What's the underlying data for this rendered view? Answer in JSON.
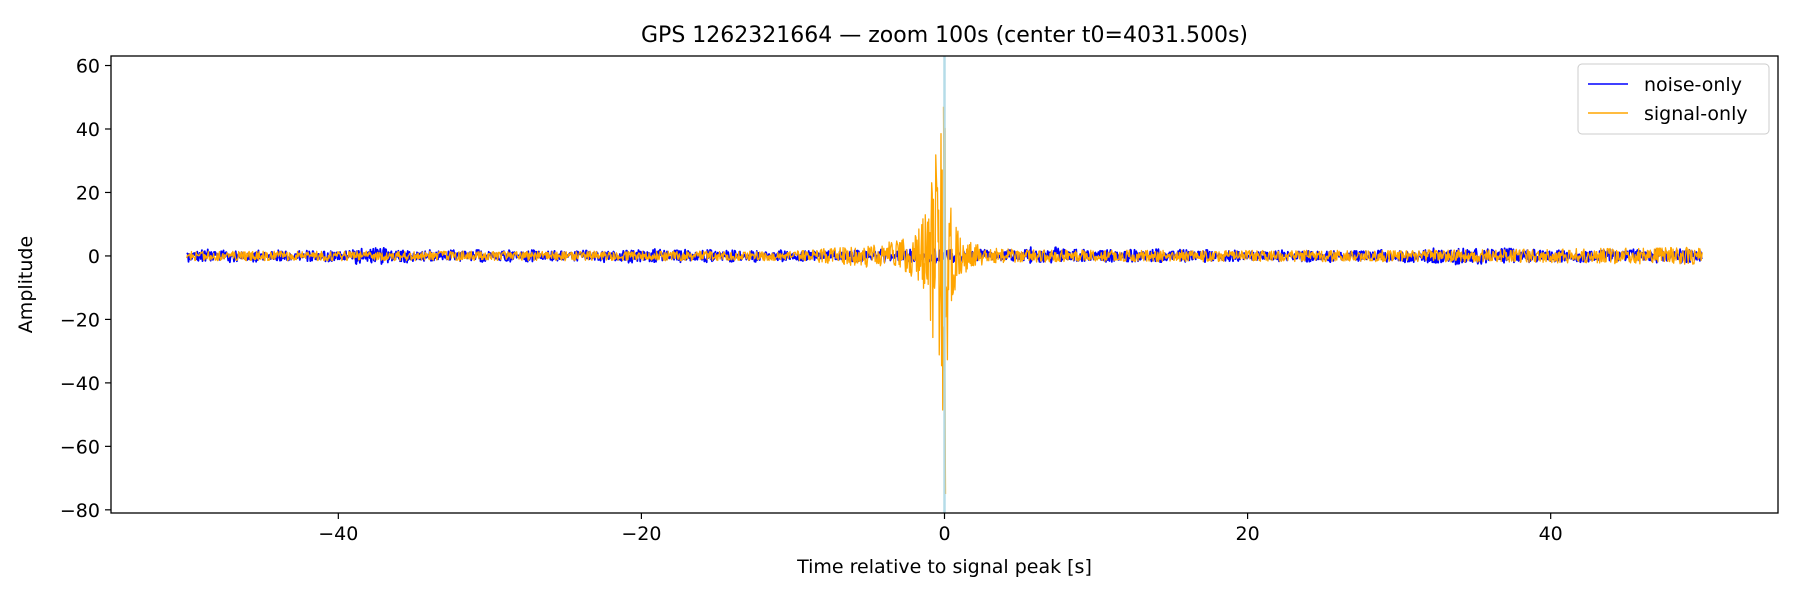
{
  "chart_data": {
    "type": "line",
    "title": "GPS 1262321664 — zoom 100s (center t0=4031.500s)",
    "xlabel": "Time relative to signal peak [s]",
    "ylabel": "Amplitude",
    "xlim": [
      -55,
      55
    ],
    "ylim": [
      -81,
      63
    ],
    "x_ticks": [
      -40,
      -20,
      0,
      20,
      40
    ],
    "x_tick_labels": [
      "−40",
      "−20",
      "0",
      "20",
      "40"
    ],
    "y_ticks": [
      60,
      40,
      20,
      0,
      -20,
      -40,
      -60,
      -80
    ],
    "y_tick_labels": [
      "60",
      "40",
      "20",
      "0",
      "−20",
      "−40",
      "−60",
      "−80"
    ],
    "grid": false,
    "legend_position": "top-right",
    "marker_line": {
      "x": 0,
      "color": "#add8e6"
    },
    "series": [
      {
        "name": "noise-only",
        "color": "#0000ff",
        "x_range": [
          -50,
          50
        ],
        "envelope": {
          "x": [
            -50,
            -45,
            -40,
            -38,
            -35,
            -30,
            -25,
            -20,
            -15,
            -10,
            -5,
            -2,
            0,
            2,
            5,
            6,
            10,
            15,
            20,
            25,
            30,
            35,
            40,
            45,
            50
          ],
          "half_amplitude": [
            2.4,
            1.8,
            2.0,
            3.0,
            2.0,
            2.0,
            1.8,
            2.4,
            2.0,
            1.8,
            2.0,
            2.2,
            2.4,
            2.0,
            2.0,
            3.2,
            2.0,
            2.2,
            1.8,
            2.0,
            2.0,
            3.0,
            2.0,
            2.2,
            2.4
          ]
        }
      },
      {
        "name": "signal-only",
        "color": "#ffa500",
        "x_range": [
          -50,
          50
        ],
        "envelope": {
          "x": [
            -50,
            -30,
            -10,
            -4,
            -2,
            -1,
            -0.5,
            -0.2,
            0,
            0.3,
            1,
            2,
            3,
            5,
            10,
            20,
            30,
            40,
            45,
            50
          ],
          "half_amplitude": [
            1.5,
            1.5,
            1.5,
            4,
            7,
            18,
            35,
            40,
            62,
            18,
            6,
            4,
            2.5,
            2,
            1.8,
            1.8,
            1.8,
            2.2,
            2.5,
            2.8
          ]
        },
        "peak_max": 47,
        "peak_min": -75
      }
    ]
  }
}
